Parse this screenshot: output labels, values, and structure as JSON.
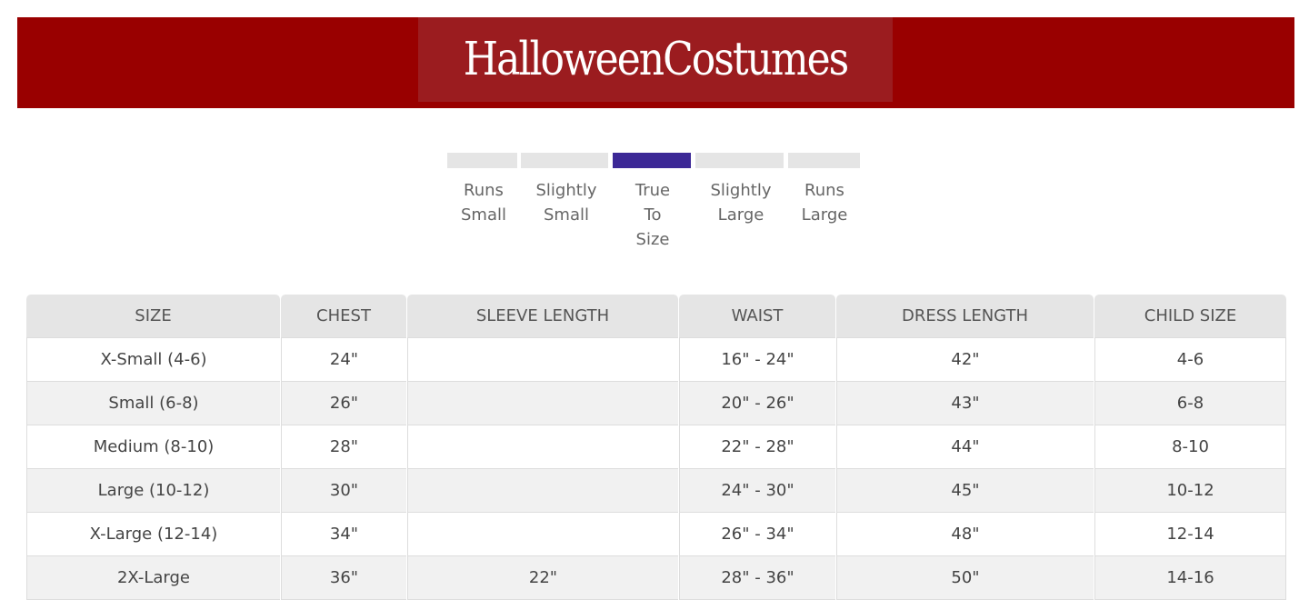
{
  "brand": {
    "logo_text": "HalloweenCostumes",
    "color": "#990000"
  },
  "fit": {
    "options": [
      "Runs Small",
      "Slightly Small",
      "True To Size",
      "Slightly Large",
      "Runs Large"
    ],
    "selected": "True To Size",
    "accent": "#3c2896"
  },
  "table": {
    "headers": [
      "SIZE",
      "CHEST",
      "SLEEVE LENGTH",
      "WAIST",
      "DRESS LENGTH",
      "CHILD SIZE"
    ],
    "rows": [
      [
        "X-Small (4-6)",
        "24\"",
        "",
        "16\" - 24\"",
        "42\"",
        "4-6"
      ],
      [
        "Small (6-8)",
        "26\"",
        "",
        "20\" - 26\"",
        "43\"",
        "6-8"
      ],
      [
        "Medium (8-10)",
        "28\"",
        "",
        "22\" - 28\"",
        "44\"",
        "8-10"
      ],
      [
        "Large (10-12)",
        "30\"",
        "",
        "24\" - 30\"",
        "45\"",
        "10-12"
      ],
      [
        "X-Large (12-14)",
        "34\"",
        "",
        "26\" - 34\"",
        "48\"",
        "12-14"
      ],
      [
        "2X-Large",
        "36\"",
        "22\"",
        "28\" - 36\"",
        "50\"",
        "14-16"
      ]
    ]
  }
}
